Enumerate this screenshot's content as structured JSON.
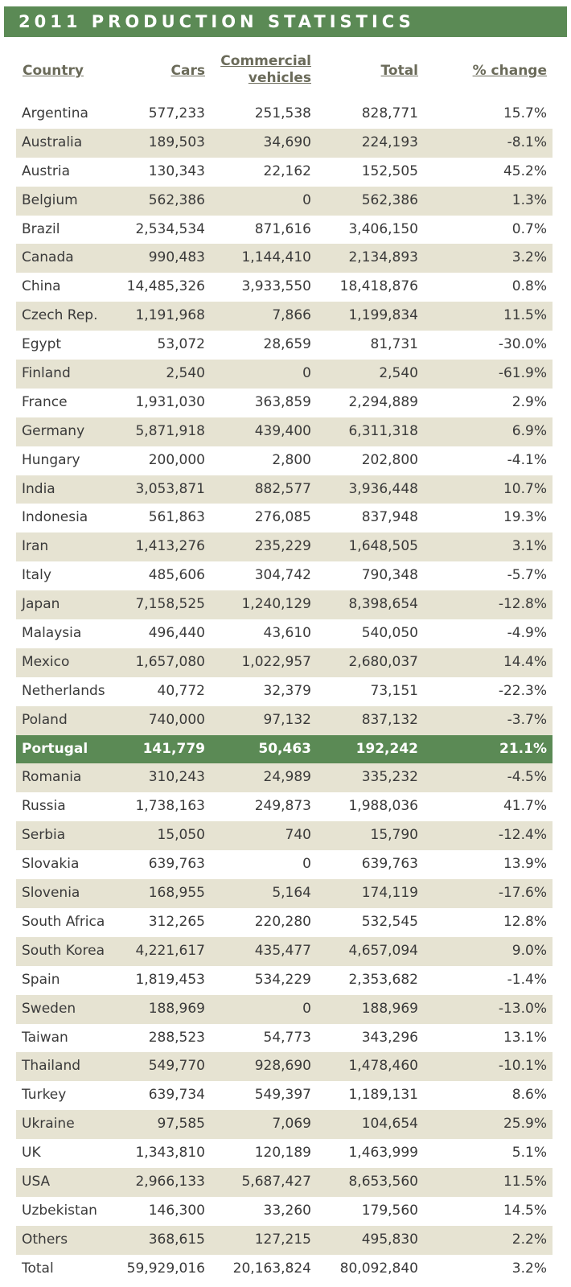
{
  "title": "2011 PRODUCTION STATISTICS",
  "headers": {
    "country": "Country",
    "cars": "Cars",
    "commercial_line1": "Commercial",
    "commercial_line2": "vehicles",
    "total": "Total",
    "pct_change": "% change"
  },
  "highlight_color": "#5b8a55",
  "stripe_color": "#e6e3d2",
  "rows": [
    [
      "Argentina",
      "577,233",
      "251,538",
      "828,771",
      "15.7%"
    ],
    [
      "Australia",
      "189,503",
      "34,690",
      "224,193",
      "-8.1%"
    ],
    [
      "Austria",
      "130,343",
      "22,162",
      "152,505",
      "45.2%"
    ],
    [
      "Belgium",
      "562,386",
      "0",
      "562,386",
      "1.3%"
    ],
    [
      "Brazil",
      "2,534,534",
      "871,616",
      "3,406,150",
      "0.7%"
    ],
    [
      "Canada",
      "990,483",
      "1,144,410",
      "2,134,893",
      "3.2%"
    ],
    [
      "China",
      "14,485,326",
      "3,933,550",
      "18,418,876",
      "0.8%"
    ],
    [
      "Czech Rep.",
      "1,191,968",
      "7,866",
      "1,199,834",
      "11.5%"
    ],
    [
      "Egypt",
      "53,072",
      "28,659",
      "81,731",
      "-30.0%"
    ],
    [
      "Finland",
      "2,540",
      "0",
      "2,540",
      "-61.9%"
    ],
    [
      "France",
      "1,931,030",
      "363,859",
      "2,294,889",
      "2.9%"
    ],
    [
      "Germany",
      "5,871,918",
      "439,400",
      "6,311,318",
      "6.9%"
    ],
    [
      "Hungary",
      "200,000",
      "2,800",
      "202,800",
      "-4.1%"
    ],
    [
      "India",
      "3,053,871",
      "882,577",
      "3,936,448",
      "10.7%"
    ],
    [
      "Indonesia",
      "561,863",
      "276,085",
      "837,948",
      "19.3%"
    ],
    [
      "Iran",
      "1,413,276",
      "235,229",
      "1,648,505",
      "3.1%"
    ],
    [
      "Italy",
      "485,606",
      "304,742",
      "790,348",
      "-5.7%"
    ],
    [
      "Japan",
      "7,158,525",
      "1,240,129",
      "8,398,654",
      "-12.8%"
    ],
    [
      "Malaysia",
      "496,440",
      "43,610",
      "540,050",
      "-4.9%"
    ],
    [
      "Mexico",
      "1,657,080",
      "1,022,957",
      "2,680,037",
      "14.4%"
    ],
    [
      "Netherlands",
      "40,772",
      "32,379",
      "73,151",
      "-22.3%"
    ],
    [
      "Poland",
      "740,000",
      "97,132",
      "837,132",
      "-3.7%"
    ],
    [
      "Portugal",
      "141,779",
      "50,463",
      "192,242",
      "21.1%"
    ],
    [
      "Romania",
      "310,243",
      "24,989",
      "335,232",
      "-4.5%"
    ],
    [
      "Russia",
      "1,738,163",
      "249,873",
      "1,988,036",
      "41.7%"
    ],
    [
      "Serbia",
      "15,050",
      "740",
      "15,790",
      "-12.4%"
    ],
    [
      "Slovakia",
      "639,763",
      "0",
      "639,763",
      "13.9%"
    ],
    [
      "Slovenia",
      "168,955",
      "5,164",
      "174,119",
      "-17.6%"
    ],
    [
      "South Africa",
      "312,265",
      "220,280",
      "532,545",
      "12.8%"
    ],
    [
      "South Korea",
      "4,221,617",
      "435,477",
      "4,657,094",
      "9.0%"
    ],
    [
      "Spain",
      "1,819,453",
      "534,229",
      "2,353,682",
      "-1.4%"
    ],
    [
      "Sweden",
      "188,969",
      "0",
      "188,969",
      "-13.0%"
    ],
    [
      "Taiwan",
      "288,523",
      "54,773",
      "343,296",
      "13.1%"
    ],
    [
      "Thailand",
      "549,770",
      "928,690",
      "1,478,460",
      "-10.1%"
    ],
    [
      "Turkey",
      "639,734",
      "549,397",
      "1,189,131",
      "8.6%"
    ],
    [
      "Ukraine",
      "97,585",
      "7,069",
      "104,654",
      "25.9%"
    ],
    [
      "UK",
      "1,343,810",
      "120,189",
      "1,463,999",
      "5.1%"
    ],
    [
      "USA",
      "2,966,133",
      "5,687,427",
      "8,653,560",
      "11.5%"
    ],
    [
      "Uzbekistan",
      "146,300",
      "33,260",
      "179,560",
      "14.5%"
    ],
    [
      "Others",
      "368,615",
      "127,215",
      "495,830",
      "2.2%"
    ],
    [
      "Total",
      "59,929,016",
      "20,163,824",
      "80,092,840",
      "3.2%"
    ]
  ],
  "highlighted_country": "Portugal"
}
